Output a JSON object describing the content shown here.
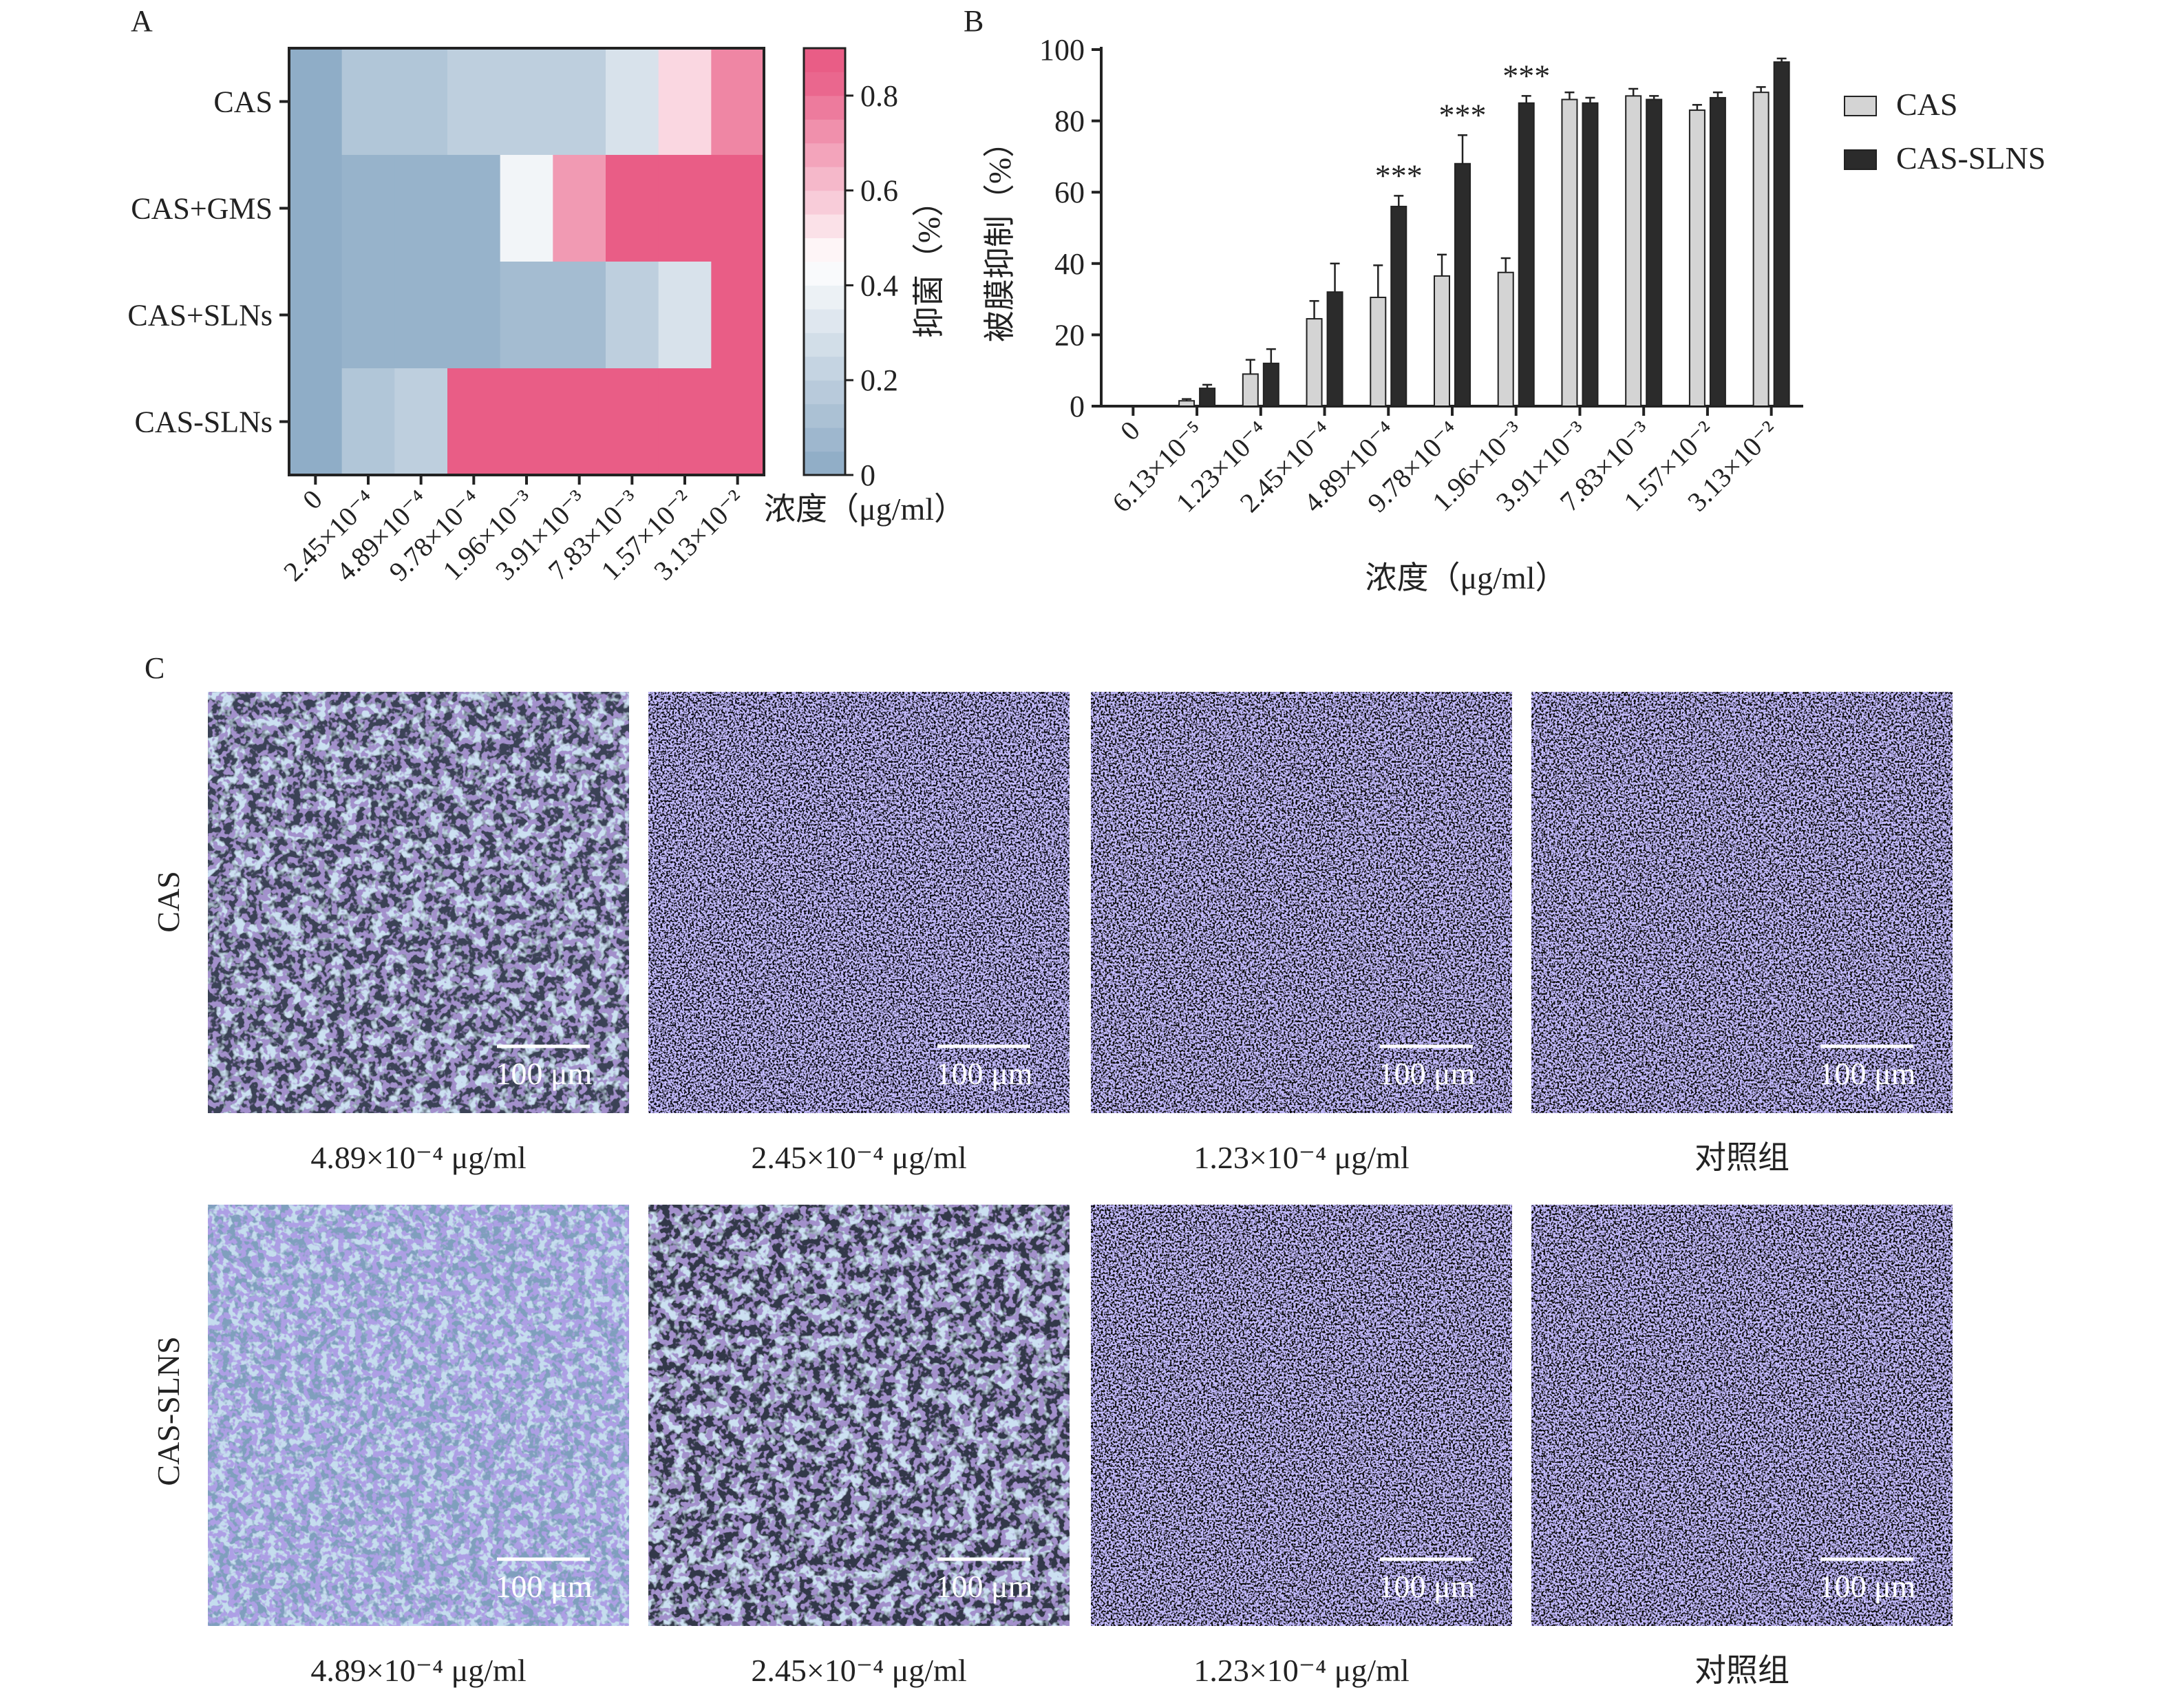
{
  "panel_labels": {
    "a": "A",
    "b": "B",
    "c": "C"
  },
  "colors": {
    "cas_bar": "#d4d4d4",
    "sln_bar": "#2b2b2b",
    "heat_low": "#8aa9c4",
    "heat_mid": "#ffffff",
    "heat_high": "#e95d86",
    "micro_bg": "#0b0b10",
    "micro_blue": "#6e63c9",
    "micro_cyan": "#8fb7d8"
  },
  "chart_data": [
    {
      "type": "heatmap",
      "panel": "A",
      "rows": [
        "CAS",
        "CAS+GMS",
        "CAS+SLNs",
        "CAS-SLNs"
      ],
      "columns": [
        "0",
        "2.45×10⁻⁴",
        "4.89×10⁻⁴",
        "9.78×10⁻⁴",
        "1.96×10⁻³",
        "3.91×10⁻³",
        "7.83×10⁻³",
        "1.57×10⁻²",
        "3.13×10⁻²"
      ],
      "values": [
        [
          0.02,
          0.15,
          0.15,
          0.2,
          0.2,
          0.2,
          0.3,
          0.55,
          0.75
        ],
        [
          0.02,
          0.05,
          0.05,
          0.05,
          0.4,
          0.7,
          0.85,
          0.85,
          0.85
        ],
        [
          0.02,
          0.05,
          0.05,
          0.05,
          0.1,
          0.1,
          0.2,
          0.3,
          0.85
        ],
        [
          0.02,
          0.15,
          0.2,
          0.85,
          0.85,
          0.85,
          0.85,
          0.85,
          0.85
        ]
      ],
      "colorbar": {
        "label": "抑菌（%）",
        "range": [
          0,
          0.9
        ],
        "ticks": [
          "0",
          "0.2",
          "0.4",
          "0.6",
          "0.8"
        ],
        "tick_values": [
          0,
          0.2,
          0.4,
          0.6,
          0.8
        ]
      },
      "xlabel": "浓度（μg/ml）"
    },
    {
      "type": "bar",
      "panel": "B",
      "categories": [
        "0",
        "6.13×10⁻⁵",
        "1.23×10⁻⁴",
        "2.45×10⁻⁴",
        "4.89×10⁻⁴",
        "9.78×10⁻⁴",
        "1.96×10⁻³",
        "3.91×10⁻³",
        "7.83×10⁻³",
        "1.57×10⁻²",
        "3.13×10⁻²"
      ],
      "series": [
        {
          "name": "CAS",
          "values": [
            0,
            1.5,
            9,
            24.5,
            30.5,
            36.5,
            37.5,
            86,
            87,
            83,
            88
          ],
          "errors": [
            0,
            0.5,
            4,
            5,
            9,
            6,
            4,
            2,
            2,
            1.5,
            1.5
          ]
        },
        {
          "name": "CAS-SLNS",
          "values": [
            0,
            5,
            12,
            32,
            56,
            68,
            85,
            85,
            86,
            86.5,
            96.5
          ],
          "errors": [
            0,
            1,
            4,
            8,
            3,
            8,
            2,
            1.5,
            1,
            1.5,
            1
          ]
        }
      ],
      "significance": [
        {
          "index": 4,
          "label": "***"
        },
        {
          "index": 5,
          "label": "***"
        },
        {
          "index": 6,
          "label": "***"
        }
      ],
      "ylim": [
        0,
        100
      ],
      "yticks": [
        "0",
        "20",
        "40",
        "60",
        "80",
        "100"
      ],
      "ylabel": "被膜抑制（%）",
      "xlabel": "浓度（μg/ml）",
      "legend_position": "top-right"
    }
  ],
  "micrographs": {
    "row_labels": [
      "CAS",
      "CAS-SLNS"
    ],
    "scale_bar": "100 μm",
    "captions": [
      [
        "4.89×10⁻⁴ μg/ml",
        "2.45×10⁻⁴ μg/ml",
        "1.23×10⁻⁴ μg/ml",
        "对照组"
      ],
      [
        "4.89×10⁻⁴ μg/ml",
        "2.45×10⁻⁴ μg/ml",
        "1.23×10⁻⁴ μg/ml",
        "对照组"
      ]
    ]
  }
}
